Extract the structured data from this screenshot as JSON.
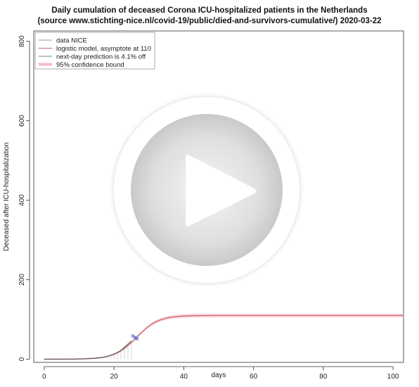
{
  "chart_data": {
    "type": "line",
    "title": "Daily cumulation of deceased Corona ICU-hospitalized patients in the Netherlands",
    "subtitle": "(source www.stichting-nice.nl/covid-19/public/died-and-survivors-cumulative/)  2020-03-22",
    "xlabel": "days",
    "ylabel": "Deceased after ICU-hospitalization",
    "xlim": [
      -3,
      103
    ],
    "ylim": [
      -8,
      826
    ],
    "xticks": [
      0,
      20,
      40,
      60,
      80,
      100
    ],
    "yticks": [
      0,
      200,
      400,
      600,
      800
    ],
    "grid": false,
    "legend_position": "top-left",
    "legend": [
      {
        "label": "data NICE",
        "color": "#9a9a9a"
      },
      {
        "label": "logistic model, asymptote at 110",
        "color": "#cc6666"
      },
      {
        "label": "next-day prediction is 4.1% off",
        "color": "#6b8f6b"
      },
      {
        "label": "95% confidence bound",
        "color": "#f5b8c8"
      }
    ],
    "series": [
      {
        "name": "data NICE",
        "color": "#9a9a9a",
        "x": [
          0,
          1,
          2,
          3,
          4,
          5,
          6,
          7,
          8,
          9,
          10,
          11,
          12,
          13,
          14,
          15,
          16,
          17,
          18,
          19,
          20,
          21,
          22,
          23,
          24,
          25
        ],
        "y": [
          0,
          0,
          0,
          0,
          0,
          0,
          0,
          0,
          0,
          0,
          1,
          1,
          1,
          2,
          2,
          3,
          4,
          5,
          7,
          10,
          13,
          17,
          22,
          30,
          38,
          46
        ]
      },
      {
        "name": "logistic model, asymptote at 110",
        "color": "#cc6666",
        "model": {
          "asymptote": 110,
          "rate": 0.32,
          "midpoint": 26.5
        },
        "x_range": [
          0,
          103
        ]
      },
      {
        "name": "next-day prediction is 4.1% off",
        "color": "#3b5bd6",
        "x": [
          26
        ],
        "y": [
          55
        ]
      }
    ]
  },
  "overlay": {
    "play_icon": "play-icon"
  }
}
